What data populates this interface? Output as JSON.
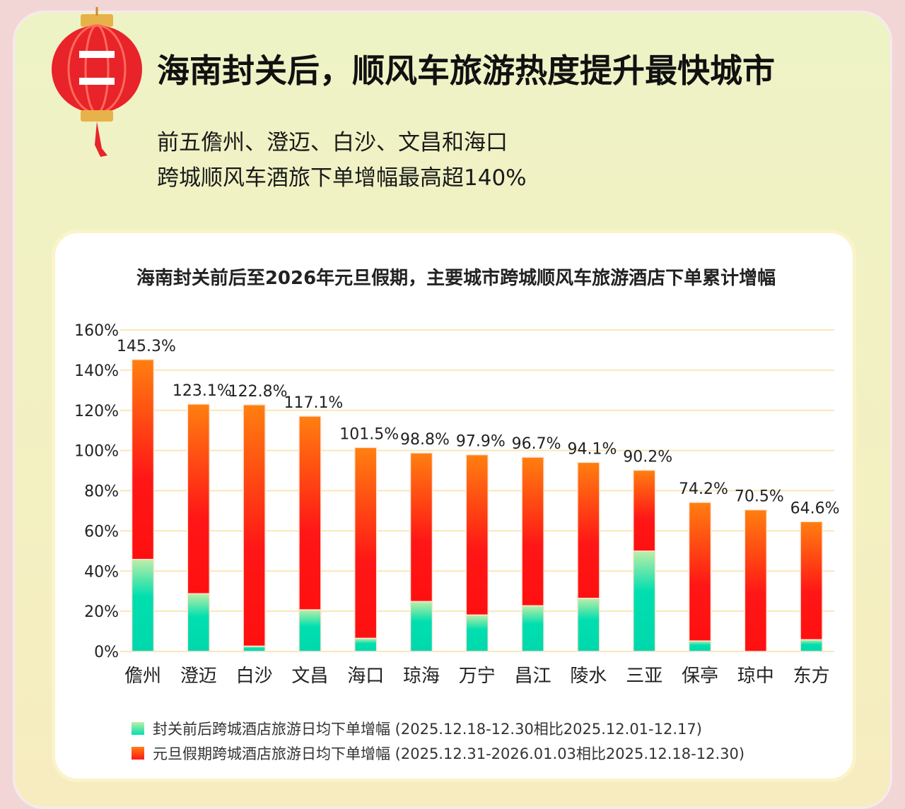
{
  "header": {
    "title": "海南封关后，顺风车旅游热度提升最快城市",
    "subtitle_lines": [
      "前五儋州、澄迈、白沙、文昌和海口",
      "跨城顺风车酒旅下单增幅最高超140%"
    ],
    "icon": "lantern-icon"
  },
  "chart_data": {
    "type": "bar",
    "stacked": true,
    "title": "海南封关前后至2026年元旦假期，主要城市跨城顺风车旅游酒店下单累计增幅",
    "categories": [
      "儋州",
      "澄迈",
      "白沙",
      "文昌",
      "海口",
      "琼海",
      "万宁",
      "昌江",
      "陵水",
      "三亚",
      "保亭",
      "琼中",
      "东方"
    ],
    "totals": [
      145.3,
      123.1,
      122.8,
      117.1,
      101.5,
      98.8,
      97.9,
      96.7,
      94.1,
      90.2,
      74.2,
      70.5,
      64.6
    ],
    "total_labels": [
      "145.3%",
      "123.1%",
      "122.8%",
      "117.1%",
      "101.5%",
      "98.8%",
      "97.9%",
      "96.7%",
      "94.1%",
      "90.2%",
      "74.2%",
      "70.5%",
      "64.6%"
    ],
    "series": [
      {
        "name": "封关前后跨城酒店旅游日均下单增幅 (2025.12.18-12.30相比2025.12.01-12.17)",
        "color": "#00ddb0",
        "values": [
          45.8,
          28.7,
          2.6,
          20.7,
          6.5,
          24.8,
          18.1,
          22.7,
          26.4,
          49.9,
          5.2,
          0,
          5.8
        ]
      },
      {
        "name": "元旦假期跨城酒店旅游日均下单增幅 (2025.12.31-2026.01.03相比2025.12.18-12.30)",
        "color": "#ff3a10",
        "values": [
          99.5,
          94.4,
          120.2,
          96.4,
          95.0,
          74.0,
          79.8,
          74.0,
          67.7,
          40.3,
          69.0,
          70.5,
          58.8
        ]
      }
    ],
    "ylim": [
      0,
      160
    ],
    "yticks": [
      0,
      20,
      40,
      60,
      80,
      100,
      120,
      140,
      160
    ],
    "ytick_labels": [
      "0%",
      "20%",
      "40%",
      "60%",
      "80%",
      "100%",
      "120%",
      "140%",
      "160%"
    ],
    "grid": true,
    "legend_placement": "bottom"
  }
}
